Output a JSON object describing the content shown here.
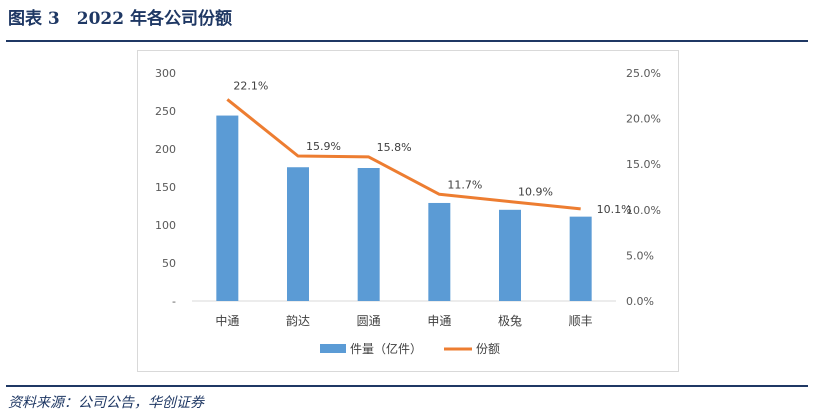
{
  "header": {
    "title": "图表 3　2022 年各公司份额"
  },
  "footer": {
    "source": "资料来源：公司公告，华创证券"
  },
  "chart_data": {
    "type": "bar",
    "categories": [
      "中通",
      "韵达",
      "圆通",
      "申通",
      "极兔",
      "顺丰"
    ],
    "series": [
      {
        "name": "件量（亿件）",
        "type": "bar",
        "axis": "left",
        "color": "#5b9bd5",
        "values": [
          244,
          176,
          175,
          129,
          120,
          111
        ]
      },
      {
        "name": "份额",
        "type": "line",
        "axis": "right",
        "color": "#ed7d31",
        "values": [
          22.1,
          15.9,
          15.8,
          11.7,
          10.9,
          10.1
        ],
        "labels": [
          "22.1%",
          "15.9%",
          "15.8%",
          "11.7%",
          "10.9%",
          "10.1%"
        ]
      }
    ],
    "y_left": {
      "ylim": [
        0,
        300
      ],
      "ticks": [
        "-",
        "50",
        "100",
        "150",
        "200",
        "250",
        "300"
      ]
    },
    "y_right": {
      "ylim": [
        0,
        25
      ],
      "ticks": [
        "0.0%",
        "5.0%",
        "10.0%",
        "15.0%",
        "20.0%",
        "25.0%"
      ]
    },
    "grid": false,
    "legend": "bottom"
  }
}
